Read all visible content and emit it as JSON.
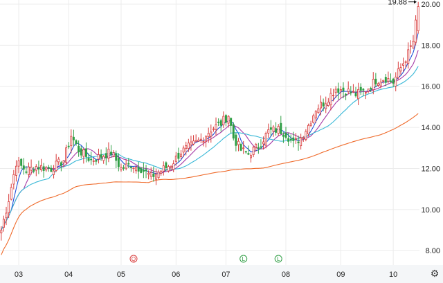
{
  "settings_icon": "gear-icon",
  "colors": {
    "up": "#d83a3a",
    "down": "#2f9e44",
    "grid": "#ececec",
    "ma_short": "#1f4fd8",
    "ma_mid": "#a63aa6",
    "ma_long": "#36b7d6",
    "ma_xlong": "#ef6a2a",
    "axis_bg": "#f4f6f8"
  },
  "chart_data": {
    "type": "candlestick",
    "title": "",
    "xlabel": "",
    "ylabel": "",
    "ylim": [
      7.3,
      20.2
    ],
    "y_ticks": [
      "8.00",
      "10.00",
      "12.00",
      "14.00",
      "16.00",
      "18.00",
      "20.00"
    ],
    "x_ticks": [
      {
        "label": "03",
        "index": 7
      },
      {
        "label": "04",
        "index": 27
      },
      {
        "label": "05",
        "index": 48
      },
      {
        "label": "06",
        "index": 70
      },
      {
        "label": "07",
        "index": 90
      },
      {
        "label": "08",
        "index": 114
      },
      {
        "label": "09",
        "index": 136
      },
      {
        "label": "10",
        "index": 157
      }
    ],
    "last_price_label": "19.88",
    "grid": true,
    "candle_count": 168,
    "close_anchors": [
      [
        0,
        9.0
      ],
      [
        3,
        10.5
      ],
      [
        6,
        12.3
      ],
      [
        10,
        11.9
      ],
      [
        14,
        12.1
      ],
      [
        20,
        12.0
      ],
      [
        25,
        12.4
      ],
      [
        28,
        13.6
      ],
      [
        31,
        12.9
      ],
      [
        36,
        12.4
      ],
      [
        40,
        12.6
      ],
      [
        44,
        12.8
      ],
      [
        48,
        12.0
      ],
      [
        52,
        12.2
      ],
      [
        56,
        12.0
      ],
      [
        60,
        11.6
      ],
      [
        64,
        11.9
      ],
      [
        68,
        12.2
      ],
      [
        72,
        12.8
      ],
      [
        76,
        13.1
      ],
      [
        80,
        13.4
      ],
      [
        84,
        13.9
      ],
      [
        88,
        14.2
      ],
      [
        91,
        14.6
      ],
      [
        93,
        13.5
      ],
      [
        96,
        12.9
      ],
      [
        99,
        12.7
      ],
      [
        103,
        13.1
      ],
      [
        107,
        13.8
      ],
      [
        111,
        13.9
      ],
      [
        114,
        13.7
      ],
      [
        117,
        13.2
      ],
      [
        120,
        13.5
      ],
      [
        123,
        14.1
      ],
      [
        126,
        14.9
      ],
      [
        130,
        15.3
      ],
      [
        134,
        15.9
      ],
      [
        138,
        15.8
      ],
      [
        142,
        15.6
      ],
      [
        146,
        15.8
      ],
      [
        150,
        16.3
      ],
      [
        154,
        16.4
      ],
      [
        157,
        16.2
      ],
      [
        160,
        16.9
      ],
      [
        163,
        17.6
      ],
      [
        165,
        18.2
      ],
      [
        167,
        19.88
      ]
    ],
    "moving_averages": [
      {
        "name": "",
        "color_key": "ma_short",
        "period": 5
      },
      {
        "name": "",
        "color_key": "ma_mid",
        "period": 10
      },
      {
        "name": "",
        "color_key": "ma_long",
        "period": 20
      },
      {
        "name": "",
        "color_key": "ma_xlong",
        "period": 60
      }
    ],
    "event_markers": [
      {
        "letter": "Q",
        "index": 53,
        "color": "#d83a3a"
      },
      {
        "letter": "L",
        "index": 97,
        "color": "#2f9e44"
      },
      {
        "letter": "L",
        "index": 111,
        "color": "#2f9e44"
      }
    ]
  }
}
